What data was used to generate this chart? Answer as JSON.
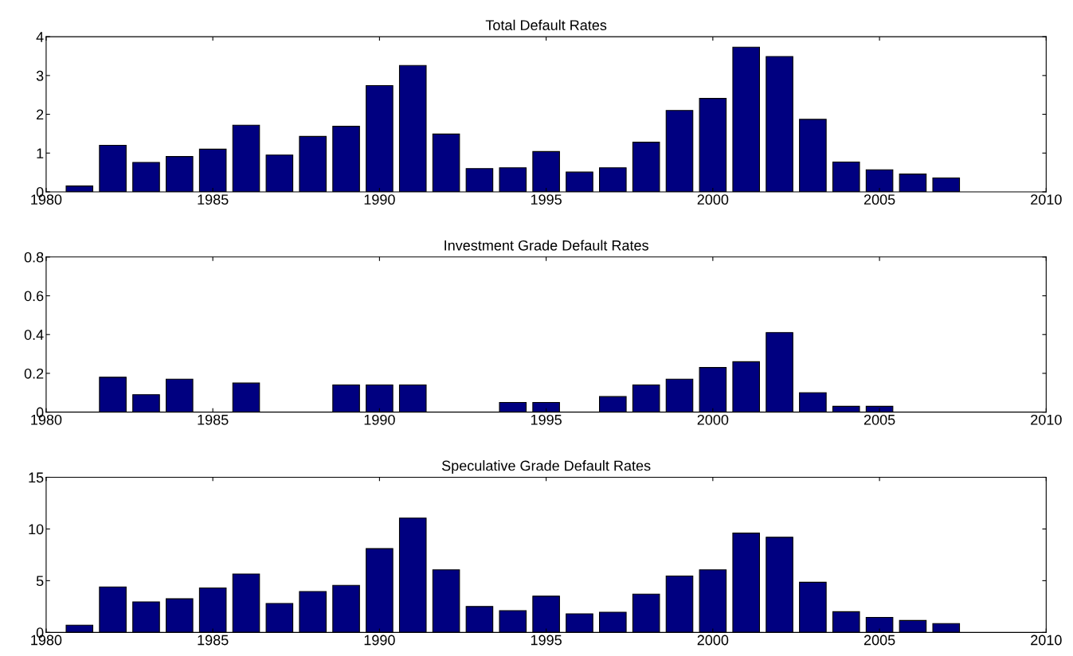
{
  "chart_data": [
    {
      "type": "bar",
      "title": "Total Default Rates",
      "x": [
        1981,
        1982,
        1983,
        1984,
        1985,
        1986,
        1987,
        1988,
        1989,
        1990,
        1991,
        1992,
        1993,
        1994,
        1995,
        1996,
        1997,
        1998,
        1999,
        2000,
        2001,
        2002,
        2003,
        2004,
        2005,
        2006,
        2007
      ],
      "values": [
        0.15,
        1.2,
        0.76,
        0.91,
        1.1,
        1.72,
        0.95,
        1.43,
        1.69,
        2.74,
        3.26,
        1.49,
        0.6,
        0.62,
        1.04,
        0.51,
        0.62,
        1.28,
        2.1,
        2.41,
        3.73,
        3.49,
        1.87,
        0.77,
        0.57,
        0.46,
        0.36
      ],
      "color": "#000080",
      "xlim": [
        1980,
        2010
      ],
      "xticks": [
        1980,
        1985,
        1990,
        1995,
        2000,
        2005,
        2010
      ],
      "ylim": [
        0,
        4
      ],
      "yticks": [
        0,
        1,
        2,
        3,
        4
      ],
      "grid": false
    },
    {
      "type": "bar",
      "title": "Investment Grade Default Rates",
      "x": [
        1981,
        1982,
        1983,
        1984,
        1985,
        1986,
        1987,
        1988,
        1989,
        1990,
        1991,
        1992,
        1993,
        1994,
        1995,
        1996,
        1997,
        1998,
        1999,
        2000,
        2001,
        2002,
        2003,
        2004,
        2005,
        2006,
        2007
      ],
      "values": [
        0,
        0.18,
        0.09,
        0.17,
        0,
        0.15,
        0,
        0,
        0.14,
        0.14,
        0.14,
        0,
        0,
        0.05,
        0.05,
        0,
        0.08,
        0.14,
        0.17,
        0.23,
        0.26,
        0.41,
        0.1,
        0.03,
        0.03,
        0,
        0
      ],
      "color": "#000080",
      "xlim": [
        1980,
        2010
      ],
      "xticks": [
        1980,
        1985,
        1990,
        1995,
        2000,
        2005,
        2010
      ],
      "ylim": [
        0,
        0.8
      ],
      "yticks": [
        0,
        0.2,
        0.4,
        0.6,
        0.8
      ],
      "grid": false
    },
    {
      "type": "bar",
      "title": "Speculative Grade Default Rates",
      "x": [
        1981,
        1982,
        1983,
        1984,
        1985,
        1986,
        1987,
        1988,
        1989,
        1990,
        1991,
        1992,
        1993,
        1994,
        1995,
        1996,
        1997,
        1998,
        1999,
        2000,
        2001,
        2002,
        2003,
        2004,
        2005,
        2006,
        2007
      ],
      "values": [
        0.7,
        4.4,
        2.95,
        3.25,
        4.3,
        5.65,
        2.8,
        3.95,
        4.55,
        8.1,
        11.05,
        6.05,
        2.5,
        2.1,
        3.5,
        1.8,
        1.95,
        3.7,
        5.45,
        6.05,
        9.6,
        9.2,
        4.85,
        2.0,
        1.45,
        1.15,
        0.85
      ],
      "color": "#000080",
      "xlim": [
        1980,
        2010
      ],
      "xticks": [
        1980,
        1985,
        1990,
        1995,
        2000,
        2005,
        2010
      ],
      "ylim": [
        0,
        15
      ],
      "yticks": [
        0,
        5,
        10,
        15
      ],
      "grid": false
    }
  ]
}
